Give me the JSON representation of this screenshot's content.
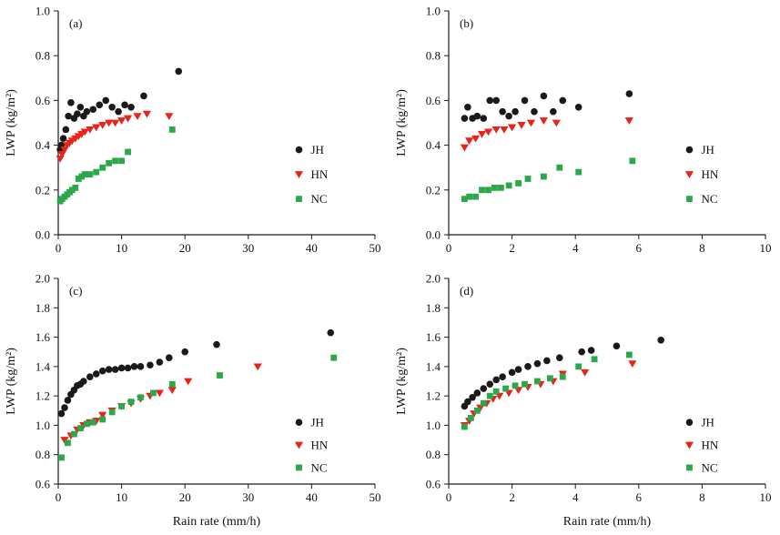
{
  "figure": {
    "xlabel": "Rain rate (mm/h)",
    "ylabel": "LWP (kg/m²)",
    "series_names": [
      "JH",
      "HN",
      "NC"
    ],
    "colors": {
      "JH": "#1a1a1a",
      "HN": "#e8231a",
      "NC": "#2aa84a"
    }
  },
  "chart_data": [
    {
      "type": "scatter",
      "label": "(a)",
      "xlabel": "",
      "ylabel": "LWP (kg/m²)",
      "xlim": [
        0,
        50
      ],
      "ylim": [
        0,
        1
      ],
      "xticks": [
        0,
        10,
        20,
        30,
        40,
        50
      ],
      "xtick_labels": [
        "0",
        "10",
        "20",
        "30",
        "40",
        "50"
      ],
      "yticks": [
        0,
        0.2,
        0.4,
        0.6,
        0.8,
        1
      ],
      "ytick_labels": [
        "0.0",
        "0.2",
        "0.4",
        "0.6",
        "0.8",
        "1.0"
      ],
      "grid": false,
      "legend": {
        "fx": 0.76,
        "fy": 0.62,
        "spacing": 0.11
      },
      "series": [
        {
          "name": "JH",
          "marker": "circle",
          "color": "#1a1a1a",
          "points": [
            [
              0.3,
              0.38
            ],
            [
              0.5,
              0.4
            ],
            [
              0.8,
              0.43
            ],
            [
              1.2,
              0.47
            ],
            [
              1.6,
              0.53
            ],
            [
              2.0,
              0.59
            ],
            [
              2.5,
              0.52
            ],
            [
              3.0,
              0.54
            ],
            [
              3.5,
              0.57
            ],
            [
              4.0,
              0.53
            ],
            [
              4.5,
              0.55
            ],
            [
              5.5,
              0.56
            ],
            [
              6.5,
              0.58
            ],
            [
              7.5,
              0.6
            ],
            [
              8.5,
              0.57
            ],
            [
              9.5,
              0.55
            ],
            [
              10.5,
              0.58
            ],
            [
              11.5,
              0.57
            ],
            [
              13.5,
              0.62
            ],
            [
              19.0,
              0.73
            ]
          ]
        },
        {
          "name": "HN",
          "marker": "triangle-down",
          "color": "#e8231a",
          "points": [
            [
              0.3,
              0.34
            ],
            [
              0.6,
              0.36
            ],
            [
              1.0,
              0.38
            ],
            [
              1.4,
              0.4
            ],
            [
              1.8,
              0.41
            ],
            [
              2.2,
              0.42
            ],
            [
              2.7,
              0.43
            ],
            [
              3.2,
              0.44
            ],
            [
              3.7,
              0.45
            ],
            [
              4.2,
              0.46
            ],
            [
              5.0,
              0.47
            ],
            [
              6.0,
              0.48
            ],
            [
              7.0,
              0.49
            ],
            [
              8.0,
              0.5
            ],
            [
              9.0,
              0.5
            ],
            [
              10.0,
              0.51
            ],
            [
              11.0,
              0.52
            ],
            [
              12.5,
              0.53
            ],
            [
              14.0,
              0.54
            ],
            [
              17.5,
              0.53
            ]
          ]
        },
        {
          "name": "NC",
          "marker": "square",
          "color": "#2aa84a",
          "points": [
            [
              0.3,
              0.15
            ],
            [
              0.6,
              0.16
            ],
            [
              1.0,
              0.17
            ],
            [
              1.4,
              0.18
            ],
            [
              1.8,
              0.19
            ],
            [
              2.2,
              0.2
            ],
            [
              2.7,
              0.21
            ],
            [
              3.2,
              0.25
            ],
            [
              3.7,
              0.26
            ],
            [
              4.2,
              0.27
            ],
            [
              5.0,
              0.27
            ],
            [
              6.0,
              0.28
            ],
            [
              7.0,
              0.3
            ],
            [
              8.0,
              0.32
            ],
            [
              9.0,
              0.33
            ],
            [
              10.0,
              0.33
            ],
            [
              11.0,
              0.37
            ],
            [
              18.0,
              0.47
            ]
          ]
        }
      ]
    },
    {
      "type": "scatter",
      "label": "(b)",
      "xlabel": "",
      "ylabel": "LWP (kg/m²)",
      "xlim": [
        0,
        10
      ],
      "ylim": [
        0,
        1
      ],
      "xticks": [
        0,
        2,
        4,
        6,
        8,
        10
      ],
      "xtick_labels": [
        "0",
        "2",
        "4",
        "6",
        "8",
        "10"
      ],
      "yticks": [
        0,
        0.2,
        0.4,
        0.6,
        0.8,
        1
      ],
      "ytick_labels": [
        "0.0",
        "0.2",
        "0.4",
        "0.6",
        "0.8",
        "1.0"
      ],
      "grid": false,
      "legend": {
        "fx": 0.76,
        "fy": 0.62,
        "spacing": 0.11
      },
      "series": [
        {
          "name": "JH",
          "marker": "circle",
          "color": "#1a1a1a",
          "points": [
            [
              0.5,
              0.52
            ],
            [
              0.6,
              0.57
            ],
            [
              0.75,
              0.52
            ],
            [
              0.9,
              0.53
            ],
            [
              1.1,
              0.52
            ],
            [
              1.3,
              0.6
            ],
            [
              1.5,
              0.6
            ],
            [
              1.7,
              0.55
            ],
            [
              1.9,
              0.53
            ],
            [
              2.1,
              0.55
            ],
            [
              2.4,
              0.6
            ],
            [
              2.7,
              0.55
            ],
            [
              3.0,
              0.62
            ],
            [
              3.3,
              0.55
            ],
            [
              3.6,
              0.6
            ],
            [
              4.1,
              0.57
            ],
            [
              5.7,
              0.63
            ]
          ]
        },
        {
          "name": "HN",
          "marker": "triangle-down",
          "color": "#e8231a",
          "points": [
            [
              0.5,
              0.39
            ],
            [
              0.65,
              0.42
            ],
            [
              0.85,
              0.43
            ],
            [
              1.05,
              0.45
            ],
            [
              1.25,
              0.46
            ],
            [
              1.5,
              0.47
            ],
            [
              1.75,
              0.47
            ],
            [
              2.0,
              0.48
            ],
            [
              2.3,
              0.49
            ],
            [
              2.6,
              0.5
            ],
            [
              3.0,
              0.51
            ],
            [
              3.4,
              0.5
            ],
            [
              5.7,
              0.51
            ]
          ]
        },
        {
          "name": "NC",
          "marker": "square",
          "color": "#2aa84a",
          "points": [
            [
              0.5,
              0.16
            ],
            [
              0.65,
              0.17
            ],
            [
              0.85,
              0.17
            ],
            [
              1.05,
              0.2
            ],
            [
              1.25,
              0.2
            ],
            [
              1.45,
              0.21
            ],
            [
              1.65,
              0.21
            ],
            [
              1.9,
              0.22
            ],
            [
              2.2,
              0.23
            ],
            [
              2.5,
              0.25
            ],
            [
              3.0,
              0.26
            ],
            [
              3.5,
              0.3
            ],
            [
              4.1,
              0.28
            ],
            [
              5.8,
              0.33
            ]
          ]
        }
      ]
    },
    {
      "type": "scatter",
      "label": "(c)",
      "xlabel": "Rain rate (mm/h)",
      "ylabel": "LWP (kg/m²)",
      "xlim": [
        0,
        50
      ],
      "ylim": [
        0.6,
        2.0
      ],
      "xticks": [
        0,
        10,
        20,
        30,
        40,
        50
      ],
      "xtick_labels": [
        "0",
        "10",
        "20",
        "30",
        "40",
        "50"
      ],
      "yticks": [
        0.6,
        0.8,
        1.0,
        1.2,
        1.4,
        1.6,
        1.8,
        2.0
      ],
      "ytick_labels": [
        "0.6",
        "0.8",
        "1.0",
        "1.2",
        "1.4",
        "1.6",
        "1.8",
        "2.0"
      ],
      "grid": false,
      "legend": {
        "fx": 0.76,
        "fy": 0.7,
        "spacing": 0.11
      },
      "series": [
        {
          "name": "JH",
          "marker": "circle",
          "color": "#1a1a1a",
          "points": [
            [
              0.5,
              1.08
            ],
            [
              1.0,
              1.12
            ],
            [
              1.5,
              1.17
            ],
            [
              2.0,
              1.21
            ],
            [
              2.5,
              1.24
            ],
            [
              3.0,
              1.27
            ],
            [
              3.5,
              1.28
            ],
            [
              4.0,
              1.3
            ],
            [
              5.0,
              1.33
            ],
            [
              6.0,
              1.35
            ],
            [
              7.0,
              1.37
            ],
            [
              8.0,
              1.38
            ],
            [
              9.0,
              1.38
            ],
            [
              10.0,
              1.39
            ],
            [
              11.0,
              1.39
            ],
            [
              12.0,
              1.4
            ],
            [
              13.0,
              1.4
            ],
            [
              14.5,
              1.41
            ],
            [
              16.0,
              1.43
            ],
            [
              17.5,
              1.46
            ],
            [
              20.0,
              1.5
            ],
            [
              25.0,
              1.55
            ],
            [
              43.0,
              1.63
            ]
          ]
        },
        {
          "name": "HN",
          "marker": "triangle-down",
          "color": "#e8231a",
          "points": [
            [
              1.0,
              0.9
            ],
            [
              2.0,
              0.93
            ],
            [
              3.0,
              0.97
            ],
            [
              4.0,
              1.0
            ],
            [
              5.0,
              1.02
            ],
            [
              6.0,
              1.03
            ],
            [
              7.0,
              1.07
            ],
            [
              8.5,
              1.1
            ],
            [
              10.0,
              1.13
            ],
            [
              11.5,
              1.15
            ],
            [
              13.0,
              1.18
            ],
            [
              14.5,
              1.2
            ],
            [
              16.0,
              1.22
            ],
            [
              18.0,
              1.24
            ],
            [
              20.5,
              1.3
            ],
            [
              31.5,
              1.4
            ]
          ]
        },
        {
          "name": "NC",
          "marker": "square",
          "color": "#2aa84a",
          "points": [
            [
              0.5,
              0.78
            ],
            [
              1.5,
              0.88
            ],
            [
              2.5,
              0.94
            ],
            [
              3.5,
              0.98
            ],
            [
              4.5,
              1.01
            ],
            [
              5.5,
              1.02
            ],
            [
              7.0,
              1.04
            ],
            [
              8.5,
              1.09
            ],
            [
              10.0,
              1.13
            ],
            [
              11.5,
              1.16
            ],
            [
              13.0,
              1.19
            ],
            [
              15.0,
              1.22
            ],
            [
              18.0,
              1.28
            ],
            [
              25.5,
              1.34
            ],
            [
              43.5,
              1.46
            ]
          ]
        }
      ]
    },
    {
      "type": "scatter",
      "label": "(d)",
      "xlabel": "Rain rate (mm/h)",
      "ylabel": "LWP (kg/m²)",
      "xlim": [
        0,
        10
      ],
      "ylim": [
        0.6,
        2.0
      ],
      "xticks": [
        0,
        2,
        4,
        6,
        8,
        10
      ],
      "xtick_labels": [
        "0",
        "2",
        "4",
        "6",
        "8",
        "10"
      ],
      "yticks": [
        0.6,
        0.8,
        1.0,
        1.2,
        1.4,
        1.6,
        1.8,
        2.0
      ],
      "ytick_labels": [
        "0.6",
        "0.8",
        "1.0",
        "1.2",
        "1.4",
        "1.6",
        "1.8",
        "2.0"
      ],
      "grid": false,
      "legend": {
        "fx": 0.76,
        "fy": 0.7,
        "spacing": 0.11
      },
      "series": [
        {
          "name": "JH",
          "marker": "circle",
          "color": "#1a1a1a",
          "points": [
            [
              0.5,
              1.13
            ],
            [
              0.6,
              1.16
            ],
            [
              0.75,
              1.19
            ],
            [
              0.9,
              1.22
            ],
            [
              1.1,
              1.25
            ],
            [
              1.3,
              1.28
            ],
            [
              1.5,
              1.31
            ],
            [
              1.7,
              1.33
            ],
            [
              2.0,
              1.36
            ],
            [
              2.2,
              1.38
            ],
            [
              2.5,
              1.4
            ],
            [
              2.8,
              1.42
            ],
            [
              3.1,
              1.44
            ],
            [
              3.5,
              1.46
            ],
            [
              4.2,
              1.5
            ],
            [
              4.5,
              1.51
            ],
            [
              5.3,
              1.54
            ],
            [
              6.7,
              1.58
            ]
          ]
        },
        {
          "name": "HN",
          "marker": "triangle-down",
          "color": "#e8231a",
          "points": [
            [
              0.5,
              1.0
            ],
            [
              0.65,
              1.03
            ],
            [
              0.8,
              1.08
            ],
            [
              1.0,
              1.12
            ],
            [
              1.2,
              1.15
            ],
            [
              1.4,
              1.18
            ],
            [
              1.6,
              1.2
            ],
            [
              1.9,
              1.22
            ],
            [
              2.2,
              1.24
            ],
            [
              2.5,
              1.26
            ],
            [
              2.9,
              1.28
            ],
            [
              3.3,
              1.3
            ],
            [
              3.6,
              1.35
            ],
            [
              4.3,
              1.36
            ],
            [
              5.8,
              1.42
            ]
          ]
        },
        {
          "name": "NC",
          "marker": "square",
          "color": "#2aa84a",
          "points": [
            [
              0.5,
              0.99
            ],
            [
              0.7,
              1.05
            ],
            [
              0.9,
              1.1
            ],
            [
              1.1,
              1.15
            ],
            [
              1.3,
              1.2
            ],
            [
              1.5,
              1.23
            ],
            [
              1.8,
              1.25
            ],
            [
              2.1,
              1.27
            ],
            [
              2.4,
              1.28
            ],
            [
              2.8,
              1.3
            ],
            [
              3.2,
              1.32
            ],
            [
              3.6,
              1.33
            ],
            [
              4.1,
              1.4
            ],
            [
              4.6,
              1.45
            ],
            [
              5.7,
              1.48
            ]
          ]
        }
      ]
    }
  ]
}
